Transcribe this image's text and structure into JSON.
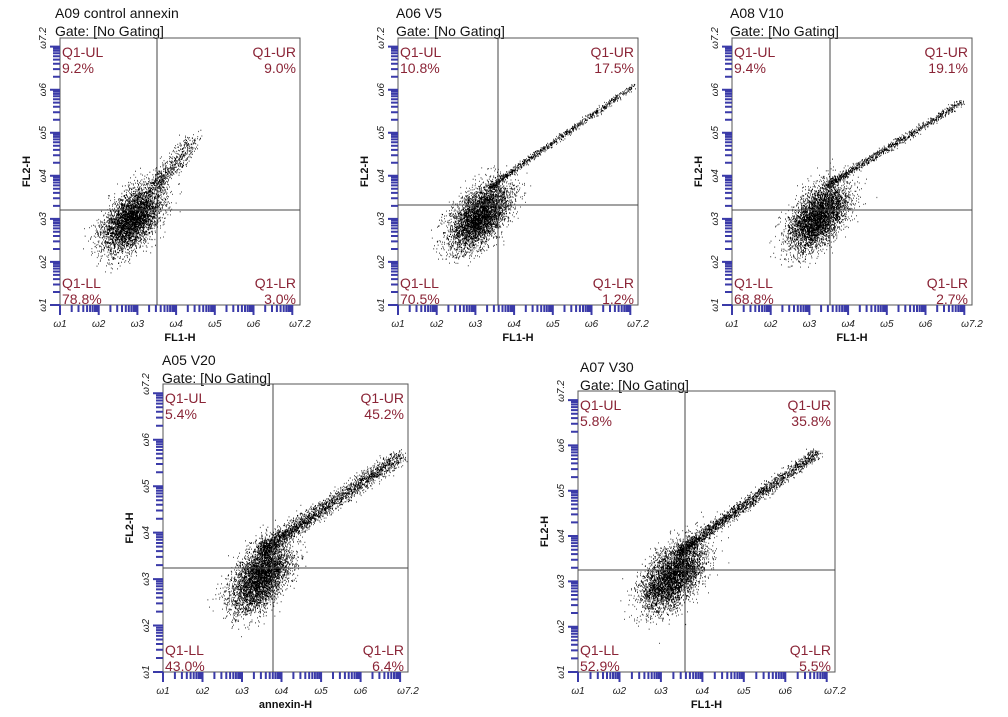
{
  "axis_ticks": [
    "ω1",
    "ω2",
    "ω3",
    "ω4",
    "ω5",
    "ω6",
    "ω7.2"
  ],
  "panels": [
    {
      "title": "A09 control annexin",
      "gate": "Gate: [No Gating]",
      "x_label": "FL1-H",
      "y_label": "FL2-H",
      "quadrants": [
        {
          "label": "Q1-UL",
          "value": "9.2%"
        },
        {
          "label": "Q1-UR",
          "value": "9.0%"
        },
        {
          "label": "Q1-LL",
          "value": "78.8%"
        },
        {
          "label": "Q1-LR",
          "value": "3.0%"
        }
      ]
    },
    {
      "title": "A06 V5",
      "gate": "Gate: [No Gating]",
      "x_label": "FL1-H",
      "y_label": "FL2-H",
      "quadrants": [
        {
          "label": "Q1-UL",
          "value": "10.8%"
        },
        {
          "label": "Q1-UR",
          "value": "17.5%"
        },
        {
          "label": "Q1-LL",
          "value": "70.5%"
        },
        {
          "label": "Q1-LR",
          "value": "1.2%"
        }
      ]
    },
    {
      "title": "A08 V10",
      "gate": "Gate: [No Gating]",
      "x_label": "FL1-H",
      "y_label": "FL2-H",
      "quadrants": [
        {
          "label": "Q1-UL",
          "value": "9.4%"
        },
        {
          "label": "Q1-UR",
          "value": "19.1%"
        },
        {
          "label": "Q1-LL",
          "value": "68.8%"
        },
        {
          "label": "Q1-LR",
          "value": "2.7%"
        }
      ]
    },
    {
      "title": "A05 V20",
      "gate": "Gate: [No Gating]",
      "x_label": "annexin-H",
      "y_label": "FL2-H",
      "quadrants": [
        {
          "label": "Q1-UL",
          "value": "5.4%"
        },
        {
          "label": "Q1-UR",
          "value": "45.2%"
        },
        {
          "label": "Q1-LL",
          "value": "43.0%"
        },
        {
          "label": "Q1-LR",
          "value": "6.4%"
        }
      ]
    },
    {
      "title": "A07 V30",
      "gate": "Gate: [No Gating]",
      "x_label": "FL1-H",
      "y_label": "FL2-H",
      "quadrants": [
        {
          "label": "Q1-UL",
          "value": "5.8%"
        },
        {
          "label": "Q1-UR",
          "value": "35.8%"
        },
        {
          "label": "Q1-LL",
          "value": "52.9%"
        },
        {
          "label": "Q1-LR",
          "value": "5.5%"
        }
      ]
    }
  ]
}
